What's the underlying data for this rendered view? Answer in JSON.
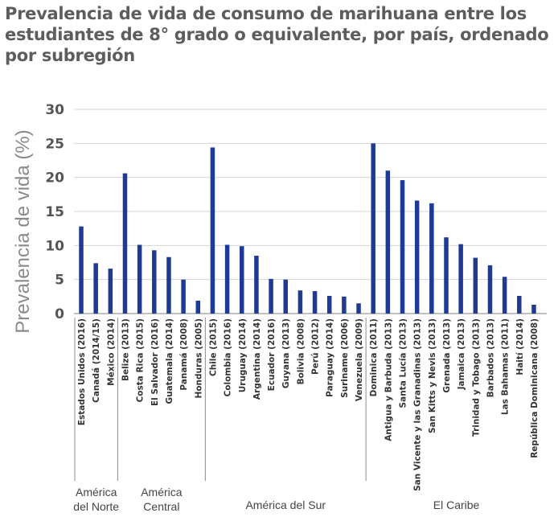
{
  "chart_data": {
    "type": "bar",
    "title": "Prevalencia de vida de consumo de marihuana entre los estudiantes de 8° grado o equivalente, por país, ordenado por subregión",
    "ylabel": "Prevalencia de vida (%)",
    "xlabel": "",
    "ylim": [
      0,
      30
    ],
    "yticks": [
      "0",
      "5",
      "10",
      "15",
      "20",
      "25",
      "30"
    ],
    "grid": true,
    "bar_color": "#1f3a93",
    "categories": [
      "Estados Unidos (2016)",
      "Canadá (2014/15)",
      "México (2014)",
      "Belize (2013)",
      "Costa Rica (2015)",
      "El Salvador (2016)",
      "Guatemala (2014)",
      "Panamá (2008)",
      "Honduras (2005)",
      "Chile (2015)",
      "Colombia (2016)",
      "Uruguay (2014)",
      "Argentina (2014)",
      "Ecuador (2016)",
      "Guyana (2013)",
      "Bolivia (2008)",
      "Perú (2012)",
      "Paraguay (2014)",
      "Suriname (2006)",
      "Venezuela (2009)",
      "Dominica (2011)",
      "Antigua y Barbuda (2013)",
      "Santa Lucía (2013)",
      "San Vicente y las Granadinas (2013)",
      "San Kitts y Nevis (2013)",
      "Grenada (2013)",
      "Jamaica (2013)",
      "Trinidad y Tobago (2013)",
      "Barbados (2013)",
      "Las Bahamas (2011)",
      "Haití (2014)",
      "República Dominicana (2008)"
    ],
    "values": [
      12.8,
      7.4,
      6.6,
      20.6,
      10.1,
      9.3,
      8.3,
      5.0,
      1.9,
      24.4,
      10.1,
      9.9,
      8.5,
      5.1,
      5.0,
      3.4,
      3.3,
      2.6,
      2.5,
      1.5,
      25.0,
      21.0,
      19.6,
      16.6,
      16.2,
      11.2,
      10.2,
      8.2,
      7.1,
      5.4,
      2.6,
      1.3
    ],
    "groups": [
      {
        "label_lines": [
          "América",
          "del Norte"
        ],
        "start": 0,
        "end": 2
      },
      {
        "label_lines": [
          "América",
          "Central"
        ],
        "start": 3,
        "end": 8
      },
      {
        "label_lines": [
          "América del Sur"
        ],
        "start": 9,
        "end": 19
      },
      {
        "label_lines": [
          "El Caribe"
        ],
        "start": 20,
        "end": 31
      }
    ]
  }
}
